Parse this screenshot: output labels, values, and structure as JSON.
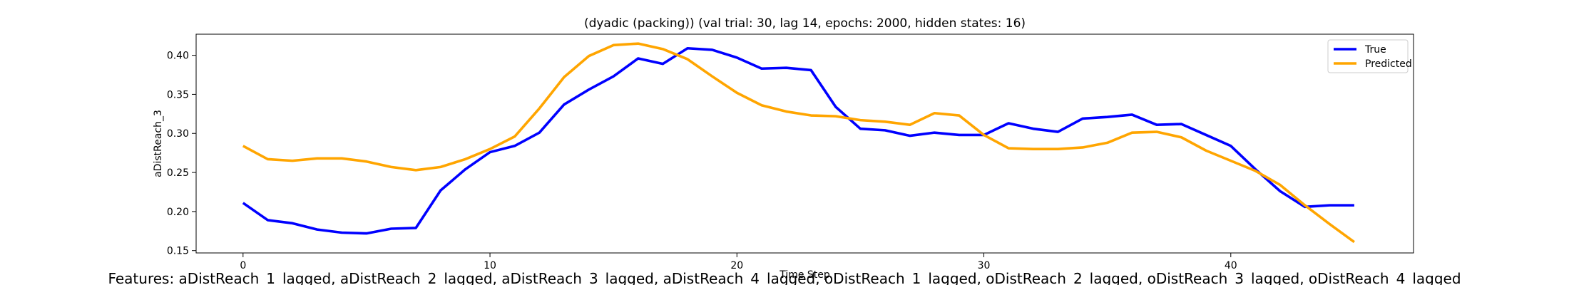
{
  "chart_data": {
    "type": "line",
    "title": "(dyadic (packing)) (val trial: 30, lag 14, epochs: 2000, hidden states: 16)",
    "xlabel": "Time Step",
    "ylabel": "aDistReach_3",
    "footer": "Features: aDistReach_1_lagged, aDistReach_2_lagged, aDistReach_3_lagged, aDistReach_4_lagged, oDistReach_1_lagged, oDistReach_2_lagged, oDistReach_3_lagged, oDistReach_4_lagged",
    "xlim": [
      -1.9,
      47.4
    ],
    "ylim": [
      0.147,
      0.427
    ],
    "xticks": [
      0,
      10,
      20,
      30,
      40
    ],
    "yticks": [
      0.15,
      0.2,
      0.25,
      0.3,
      0.35,
      0.4
    ],
    "ytick_labels": [
      "0.15",
      "0.20",
      "0.25",
      "0.30",
      "0.35",
      "0.40"
    ],
    "legend_position": "upper right",
    "grid": false,
    "series": [
      {
        "name": "True",
        "color": "#0000ff",
        "values": [
          0.211,
          0.189,
          0.185,
          0.177,
          0.173,
          0.172,
          0.178,
          0.179,
          0.227,
          0.254,
          0.276,
          0.284,
          0.301,
          0.337,
          0.356,
          0.373,
          0.396,
          0.389,
          0.409,
          0.407,
          0.397,
          0.383,
          0.384,
          0.381,
          0.334,
          0.306,
          0.304,
          0.297,
          0.301,
          0.298,
          0.298,
          0.313,
          0.306,
          0.302,
          0.319,
          0.321,
          0.324,
          0.311,
          0.312,
          0.298,
          0.284,
          0.254,
          0.226,
          0.206,
          0.208,
          0.208
        ]
      },
      {
        "name": "Predicted",
        "color": "#ffa500",
        "values": [
          0.284,
          0.267,
          0.265,
          0.268,
          0.268,
          0.264,
          0.257,
          0.253,
          0.257,
          0.267,
          0.28,
          0.296,
          0.332,
          0.372,
          0.399,
          0.413,
          0.415,
          0.408,
          0.395,
          0.373,
          0.352,
          0.336,
          0.328,
          0.323,
          0.322,
          0.317,
          0.315,
          0.311,
          0.326,
          0.323,
          0.298,
          0.281,
          0.28,
          0.28,
          0.282,
          0.288,
          0.301,
          0.302,
          0.295,
          0.278,
          0.265,
          0.252,
          0.234,
          0.208,
          0.184,
          0.161
        ]
      }
    ]
  }
}
